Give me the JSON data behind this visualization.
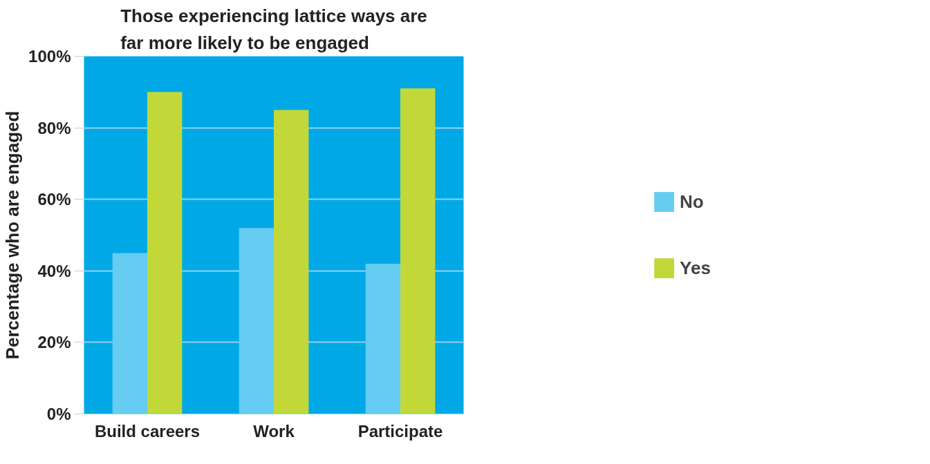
{
  "chart_data": {
    "type": "bar",
    "title": "Those experiencing lattice ways are\nfar more likely to be engaged",
    "ylabel": "Percentage who are engaged",
    "categories": [
      "Build careers",
      "Work",
      "Participate"
    ],
    "series": [
      {
        "name": "No",
        "color": "#66ccf2",
        "values": [
          45,
          52,
          42
        ]
      },
      {
        "name": "Yes",
        "color": "#c2d839",
        "values": [
          90,
          85,
          91
        ]
      }
    ],
    "ylim": [
      0,
      100
    ],
    "yticks": [
      {
        "value": 0,
        "label": "0%"
      },
      {
        "value": 20,
        "label": "20%"
      },
      {
        "value": 40,
        "label": "40%"
      },
      {
        "value": 60,
        "label": "60%"
      },
      {
        "value": 80,
        "label": "80%"
      },
      {
        "value": 100,
        "label": "100%"
      }
    ],
    "grid": "y",
    "legend": "right"
  }
}
